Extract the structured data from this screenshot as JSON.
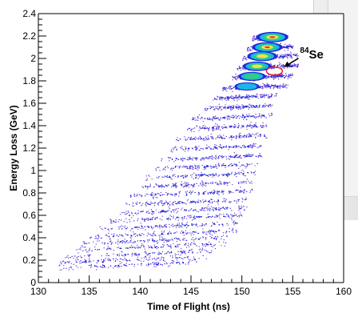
{
  "chart_data": {
    "type": "scatter",
    "title": "",
    "xlabel": "Time of Flight (ns)",
    "ylabel": "Energy Loss (GeV)",
    "xlim": [
      130,
      160
    ],
    "ylim": [
      0,
      2.4
    ],
    "x_ticks": [
      "130",
      "135",
      "140",
      "145",
      "150",
      "155",
      "160"
    ],
    "y_ticks": [
      "0",
      "0.2",
      "0.4",
      "0.6",
      "0.8",
      "1",
      "1.2",
      "1.4",
      "1.6",
      "1.8",
      "2",
      "2.2",
      "2.4"
    ],
    "grid": false,
    "annotation": {
      "mass": "84",
      "element": "Se",
      "x": 153.2,
      "y": 1.93
    },
    "bands": [
      {
        "y": 0.16,
        "x_start": 132.0,
        "x_end": 146.0,
        "density": 0.55
      },
      {
        "y": 0.21,
        "x_start": 132.0,
        "x_end": 147.0,
        "density": 0.6
      },
      {
        "y": 0.26,
        "x_start": 132.5,
        "x_end": 147.5,
        "density": 0.6
      },
      {
        "y": 0.32,
        "x_start": 133.0,
        "x_end": 148.5,
        "density": 0.65
      },
      {
        "y": 0.38,
        "x_start": 134.0,
        "x_end": 149.0,
        "density": 0.65
      },
      {
        "y": 0.44,
        "x_start": 135.0,
        "x_end": 149.5,
        "density": 0.7
      },
      {
        "y": 0.51,
        "x_start": 136.0,
        "x_end": 150.0,
        "density": 0.7
      },
      {
        "y": 0.58,
        "x_start": 137.0,
        "x_end": 150.0,
        "density": 0.7
      },
      {
        "y": 0.65,
        "x_start": 138.0,
        "x_end": 150.5,
        "density": 0.7
      },
      {
        "y": 0.72,
        "x_start": 138.5,
        "x_end": 150.5,
        "density": 0.7
      },
      {
        "y": 0.8,
        "x_start": 139.0,
        "x_end": 151.0,
        "density": 0.7
      },
      {
        "y": 0.88,
        "x_start": 140.0,
        "x_end": 151.0,
        "density": 0.7
      },
      {
        "y": 0.96,
        "x_start": 140.5,
        "x_end": 151.5,
        "density": 0.65
      },
      {
        "y": 1.04,
        "x_start": 141.5,
        "x_end": 151.5,
        "density": 0.65
      },
      {
        "y": 1.12,
        "x_start": 142.0,
        "x_end": 152.0,
        "density": 0.65
      },
      {
        "y": 1.21,
        "x_start": 143.0,
        "x_end": 152.0,
        "density": 0.65
      },
      {
        "y": 1.3,
        "x_start": 143.5,
        "x_end": 152.5,
        "density": 0.65
      },
      {
        "y": 1.39,
        "x_start": 144.5,
        "x_end": 152.5,
        "density": 0.65
      },
      {
        "y": 1.48,
        "x_start": 145.0,
        "x_end": 153.0,
        "density": 0.65
      },
      {
        "y": 1.57,
        "x_start": 146.0,
        "x_end": 153.0,
        "density": 0.7
      },
      {
        "y": 1.66,
        "x_start": 147.0,
        "x_end": 153.5,
        "density": 0.75
      },
      {
        "y": 1.75,
        "x_start": 148.0,
        "x_end": 154.5,
        "density": 0.9
      },
      {
        "y": 1.84,
        "x_start": 149.0,
        "x_end": 155.0,
        "density": 1.0
      },
      {
        "y": 1.93,
        "x_start": 149.5,
        "x_end": 155.5,
        "density": 1.0
      },
      {
        "y": 2.02,
        "x_start": 150.0,
        "x_end": 155.5,
        "density": 1.0
      },
      {
        "y": 2.1,
        "x_start": 150.5,
        "x_end": 155.0,
        "density": 1.0
      },
      {
        "y": 2.19,
        "x_start": 151.0,
        "x_end": 154.5,
        "density": 1.0
      }
    ],
    "hot_spots": [
      {
        "x": 153.0,
        "y": 2.19,
        "intensity": 1.0
      },
      {
        "x": 152.5,
        "y": 2.1,
        "intensity": 0.9
      },
      {
        "x": 152.0,
        "y": 2.02,
        "intensity": 0.85
      },
      {
        "x": 151.5,
        "y": 1.93,
        "intensity": 0.75
      },
      {
        "x": 151.0,
        "y": 1.84,
        "intensity": 0.65
      },
      {
        "x": 150.5,
        "y": 1.75,
        "intensity": 0.45
      }
    ],
    "colors": {
      "sparse": "#6d3bd6",
      "dense": "#1f28d8",
      "mid": "#19b6e6",
      "high": "#2fd07a",
      "peak": "#f6e04b",
      "top": "#e3322b",
      "axis": "#000000",
      "highlight_ring": "#e0202a"
    }
  }
}
